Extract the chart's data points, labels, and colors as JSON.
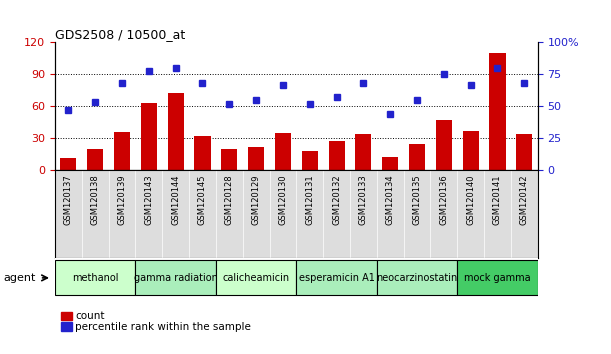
{
  "title": "GDS2508 / 10500_at",
  "samples": [
    "GSM120137",
    "GSM120138",
    "GSM120139",
    "GSM120143",
    "GSM120144",
    "GSM120145",
    "GSM120128",
    "GSM120129",
    "GSM120130",
    "GSM120131",
    "GSM120132",
    "GSM120133",
    "GSM120134",
    "GSM120135",
    "GSM120136",
    "GSM120140",
    "GSM120141",
    "GSM120142"
  ],
  "counts": [
    11,
    20,
    36,
    63,
    72,
    32,
    20,
    22,
    35,
    18,
    27,
    34,
    12,
    24,
    47,
    37,
    110,
    34
  ],
  "percentiles": [
    47,
    53,
    68,
    78,
    80,
    68,
    52,
    55,
    67,
    52,
    57,
    68,
    44,
    55,
    75,
    67,
    80,
    68
  ],
  "bar_color": "#cc0000",
  "dot_color": "#2222cc",
  "agent_groups": [
    {
      "label": "methanol",
      "start": 0,
      "end": 3,
      "color": "#ccffcc"
    },
    {
      "label": "gamma radiation",
      "start": 3,
      "end": 6,
      "color": "#aaeebb"
    },
    {
      "label": "calicheamicin",
      "start": 6,
      "end": 9,
      "color": "#ccffcc"
    },
    {
      "label": "esperamicin A1",
      "start": 9,
      "end": 12,
      "color": "#aaeebb"
    },
    {
      "label": "neocarzinostatin",
      "start": 12,
      "end": 15,
      "color": "#aaeebb"
    },
    {
      "label": "mock gamma",
      "start": 15,
      "end": 18,
      "color": "#44cc66"
    }
  ],
  "ylim_left": [
    0,
    120
  ],
  "ylim_right": [
    0,
    100
  ],
  "yticks_left": [
    0,
    30,
    60,
    90,
    120
  ],
  "yticks_right": [
    0,
    25,
    50,
    75,
    100
  ],
  "left_tick_color": "#cc0000",
  "right_tick_color": "#2222cc",
  "legend_count_label": "count",
  "legend_percentile_label": "percentile rank within the sample",
  "background_color": "#ffffff",
  "tick_label_bg": "#dddddd"
}
